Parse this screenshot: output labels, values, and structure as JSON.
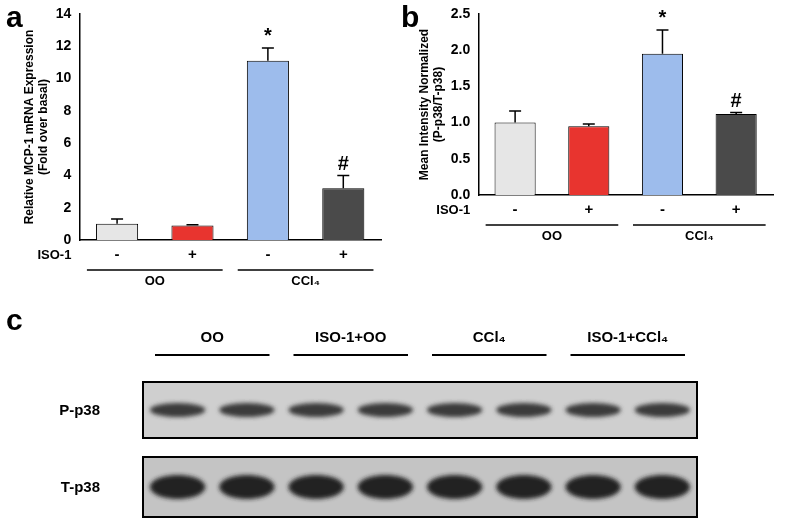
{
  "chart_data": [
    {
      "type": "bar",
      "label": "a",
      "categories": [
        "-",
        "+",
        "-",
        "+"
      ],
      "category_axis_label": "ISO-1",
      "groups": [
        "OO",
        "CCl₄"
      ],
      "values": [
        1.0,
        0.9,
        11.1,
        3.2
      ],
      "errors": [
        0.3,
        0.05,
        0.8,
        0.8
      ],
      "significance": [
        null,
        null,
        "*",
        "#"
      ],
      "colors": [
        "#e6e6e6",
        "#e8342f",
        "#9dbcec",
        "#4a4a4a"
      ],
      "y_label": [
        "Relative MCP-1 mRNA Expression",
        "(Fold over basal)"
      ],
      "ylim": [
        0,
        14
      ],
      "yticks": [
        0,
        2,
        4,
        6,
        8,
        10,
        12,
        14
      ],
      "grid": false
    },
    {
      "type": "bar",
      "label": "b",
      "categories": [
        "-",
        "+",
        "-",
        "+"
      ],
      "category_axis_label": "ISO-1",
      "groups": [
        "OO",
        "CCl₄"
      ],
      "values": [
        1.0,
        0.95,
        1.95,
        1.12
      ],
      "errors": [
        0.16,
        0.03,
        0.33,
        0.02
      ],
      "significance": [
        null,
        null,
        "*",
        "#"
      ],
      "colors": [
        "#e6e6e6",
        "#e8342f",
        "#9dbcec",
        "#4a4a4a"
      ],
      "y_label": [
        "Mean Intensity Normalized",
        "(P-p38/T-p38)"
      ],
      "ylim": [
        0,
        2.5
      ],
      "yticks": [
        {
          "value": 0,
          "label": "0.0"
        },
        {
          "value": 0.5,
          "label": "0.5"
        },
        {
          "value": 1,
          "label": "1.0"
        },
        {
          "value": 1.5,
          "label": "1.5"
        },
        {
          "value": 2,
          "label": "2.0"
        },
        {
          "value": 2.5,
          "label": "2.5"
        }
      ],
      "grid": false
    }
  ],
  "blot": {
    "label": "c",
    "groups": [
      "OO",
      "ISO-1+OO",
      "CCl₄",
      "ISO-1+CCl₄"
    ],
    "lanes_per_group": 2,
    "rows": [
      "P-p38",
      "T-p38"
    ]
  }
}
